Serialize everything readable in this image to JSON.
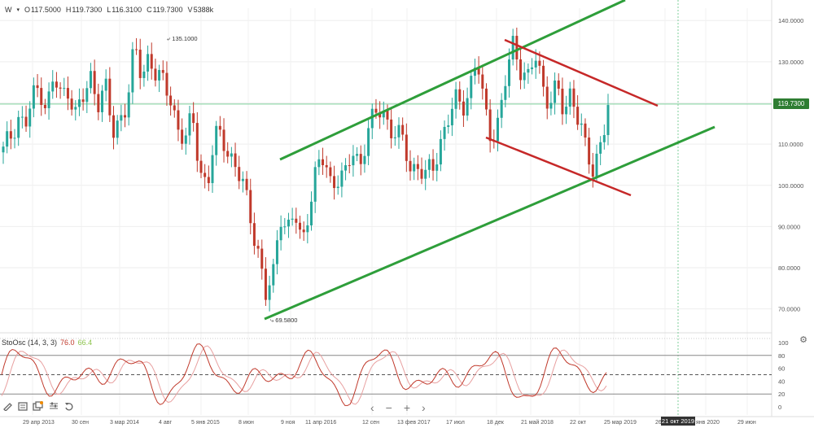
{
  "legend": {
    "symbol": "W",
    "open_label": "O",
    "open_value": "117.5000",
    "high_label": "H",
    "high_value": "119.7300",
    "low_label": "L",
    "low_value": "116.3100",
    "close_label": "C",
    "close_value": "119.7300",
    "volume_label": "V",
    "volume_value": "5388k"
  },
  "current_price_tag": "119.7300",
  "annotations": {
    "high": "135.1000",
    "low": "69.5800"
  },
  "crosshair_date": "21 окт 2019",
  "oscillator": {
    "name": "StoOsc (14, 3, 3)",
    "value_k": "76.0",
    "value_d": "66.4",
    "levels": [
      "100",
      "80",
      "60",
      "40",
      "20",
      "0"
    ]
  },
  "colors": {
    "up": "#26a69a",
    "down": "#c0392b",
    "channel_green": "#2e9e3a",
    "channel_red": "#c62828",
    "price_line": "#7ccf9a"
  },
  "icons": [
    "pencil-icon",
    "list-icon",
    "layers-icon",
    "settings-sliders-icon",
    "undo-icon"
  ],
  "nav": {
    "left": "‹",
    "minus": "−",
    "plus": "+",
    "right": "›"
  },
  "chart_data": {
    "type": "candlestick",
    "x_tick_labels": [
      "29 апр 2013",
      "30 сен",
      "3 мар 2014",
      "4 авг",
      "5 янв 2015",
      "8 июн",
      "9 ноя",
      "11 апр 2016",
      "12 сен",
      "13 фев 2017",
      "17 июл",
      "18 дек",
      "21 май 2018",
      "22 окт",
      "25 мар 2019",
      "26",
      "янв 2020",
      "29 июн"
    ],
    "y_tick_labels": [
      "140.0000",
      "130.0000",
      "120.0000",
      "110.0000",
      "100.0000",
      "90.0000",
      "80.0000",
      "70.0000"
    ],
    "ylim": [
      65,
      143
    ],
    "close_path": [
      108,
      112,
      117,
      114,
      121,
      124,
      119,
      126,
      121,
      124,
      117,
      121,
      126,
      121,
      124,
      112,
      116,
      121,
      133,
      126,
      132,
      127,
      124,
      121,
      114,
      111,
      116,
      104,
      100,
      111,
      112,
      108,
      104,
      99,
      92,
      84,
      73,
      77,
      94,
      89,
      93,
      85,
      96,
      104,
      106,
      100,
      103,
      102,
      108,
      105,
      114,
      116,
      119,
      114,
      113,
      109,
      104,
      105,
      102,
      104,
      111,
      116,
      120,
      119,
      124,
      131,
      118,
      112,
      116,
      126,
      134,
      129,
      126,
      131,
      124,
      121,
      124,
      116,
      124,
      116,
      108,
      102,
      112,
      119
    ],
    "channels": [
      {
        "color": "green",
        "points": [
          [
            69.6,
            "2015-12"
          ],
          [
            135,
            "2019-06"
          ]
        ]
      },
      {
        "color": "green",
        "points": [
          [
            106.5,
            "2016-03"
          ],
          [
            145,
            "2019-04"
          ]
        ]
      },
      {
        "color": "red",
        "points": [
          [
            134,
            "2018-01"
          ],
          [
            119.5,
            "2019-08"
          ]
        ]
      },
      {
        "color": "red",
        "points": [
          [
            111,
            "2018-02"
          ],
          [
            100,
            "2019-08"
          ]
        ]
      }
    ]
  }
}
